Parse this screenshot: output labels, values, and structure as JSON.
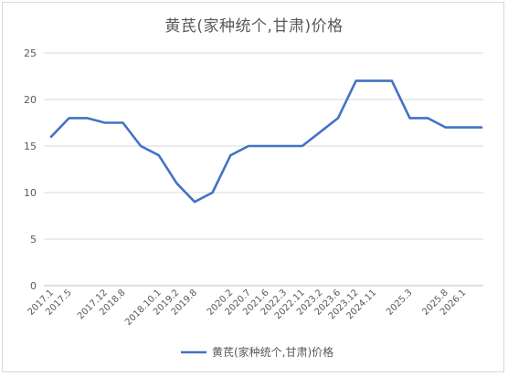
{
  "chart_data": {
    "type": "line",
    "title": "黄芪(家种统个,甘肃)价格",
    "xlabel": "",
    "ylabel": "",
    "ylim": [
      0,
      25
    ],
    "yticks": [
      0,
      5,
      10,
      15,
      20,
      25
    ],
    "grid": true,
    "legend_position": "bottom",
    "colors": {
      "series": "#4472C4",
      "grid": "#d9d9d9",
      "axis": "#bfbfbf",
      "text": "#595959"
    },
    "tick_labels": [
      "2017.1",
      "2017.5",
      "2017.12",
      "2018.8",
      "2018.10.1",
      "2019.2",
      "2019.8",
      "2020.2",
      "2020.7",
      "2021.6",
      "2022.3",
      "2022.11",
      "2023.2",
      "2023.6",
      "2023.12",
      "2024.11",
      "2025.3",
      "2025.8",
      "2026.1"
    ],
    "points": [
      {
        "x": "2017.1",
        "y": 16
      },
      {
        "x": "2017.5",
        "y": 18
      },
      {
        "x": "",
        "y": 18
      },
      {
        "x": "2017.12",
        "y": 17.5
      },
      {
        "x": "2018.8",
        "y": 17.5
      },
      {
        "x": "",
        "y": 15
      },
      {
        "x": "2018.10.1",
        "y": 14
      },
      {
        "x": "2019.2",
        "y": 11
      },
      {
        "x": "2019.8",
        "y": 9
      },
      {
        "x": "",
        "y": 10
      },
      {
        "x": "2020.2",
        "y": 14
      },
      {
        "x": "2020.7",
        "y": 15
      },
      {
        "x": "2021.6",
        "y": 15
      },
      {
        "x": "2022.3",
        "y": 15
      },
      {
        "x": "2022.11",
        "y": 15
      },
      {
        "x": "2023.2",
        "y": 16.5
      },
      {
        "x": "2023.6",
        "y": 18
      },
      {
        "x": "2023.12",
        "y": 22
      },
      {
        "x": "2024.11",
        "y": 22
      },
      {
        "x": "",
        "y": 22
      },
      {
        "x": "2025.3",
        "y": 18
      },
      {
        "x": "",
        "y": 18
      },
      {
        "x": "2025.8",
        "y": 17
      },
      {
        "x": "2026.1",
        "y": 17
      },
      {
        "x": "",
        "y": 17
      }
    ],
    "series": [
      {
        "name": "黄芪(家种统个,甘肃)价格"
      }
    ]
  }
}
